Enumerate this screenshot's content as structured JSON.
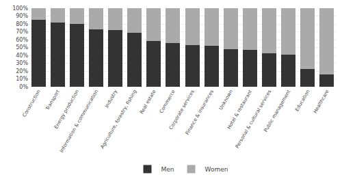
{
  "chart_data": {
    "type": "bar",
    "stacked": true,
    "categories": [
      "Construction",
      "Transport",
      "Energy production",
      "Information & communication",
      "Industry",
      "Agriculture, forestry, fishing",
      "Real estate",
      "Commerce",
      "Corporate services",
      "Finance & insurances",
      "Unknown",
      "Hotel & restaurant",
      "Personal & cultural services",
      "Public management",
      "Education",
      "Healthcare"
    ],
    "series": [
      {
        "name": "Men",
        "color": "#333333",
        "values": [
          85,
          82,
          80,
          73,
          72,
          69,
          58,
          56,
          53,
          52,
          48,
          47,
          43,
          41,
          23,
          16
        ]
      },
      {
        "name": "Women",
        "color": "#aaaaaa",
        "values": [
          15,
          18,
          20,
          27,
          28,
          31,
          42,
          44,
          47,
          48,
          52,
          53,
          57,
          59,
          77,
          84
        ]
      }
    ],
    "ylim": [
      0,
      100
    ],
    "yticks": [
      {
        "value": 0,
        "label": "0%"
      },
      {
        "value": 10,
        "label": "10%"
      },
      {
        "value": 20,
        "label": "20%"
      },
      {
        "value": 30,
        "label": "30%"
      },
      {
        "value": 40,
        "label": "40%"
      },
      {
        "value": 50,
        "label": "50%"
      },
      {
        "value": 60,
        "label": "60%"
      },
      {
        "value": 70,
        "label": "70%"
      },
      {
        "value": 80,
        "label": "80%"
      },
      {
        "value": 90,
        "label": "90%"
      },
      {
        "value": 100,
        "label": "100%"
      }
    ],
    "grid": true,
    "legend": "bottom"
  }
}
